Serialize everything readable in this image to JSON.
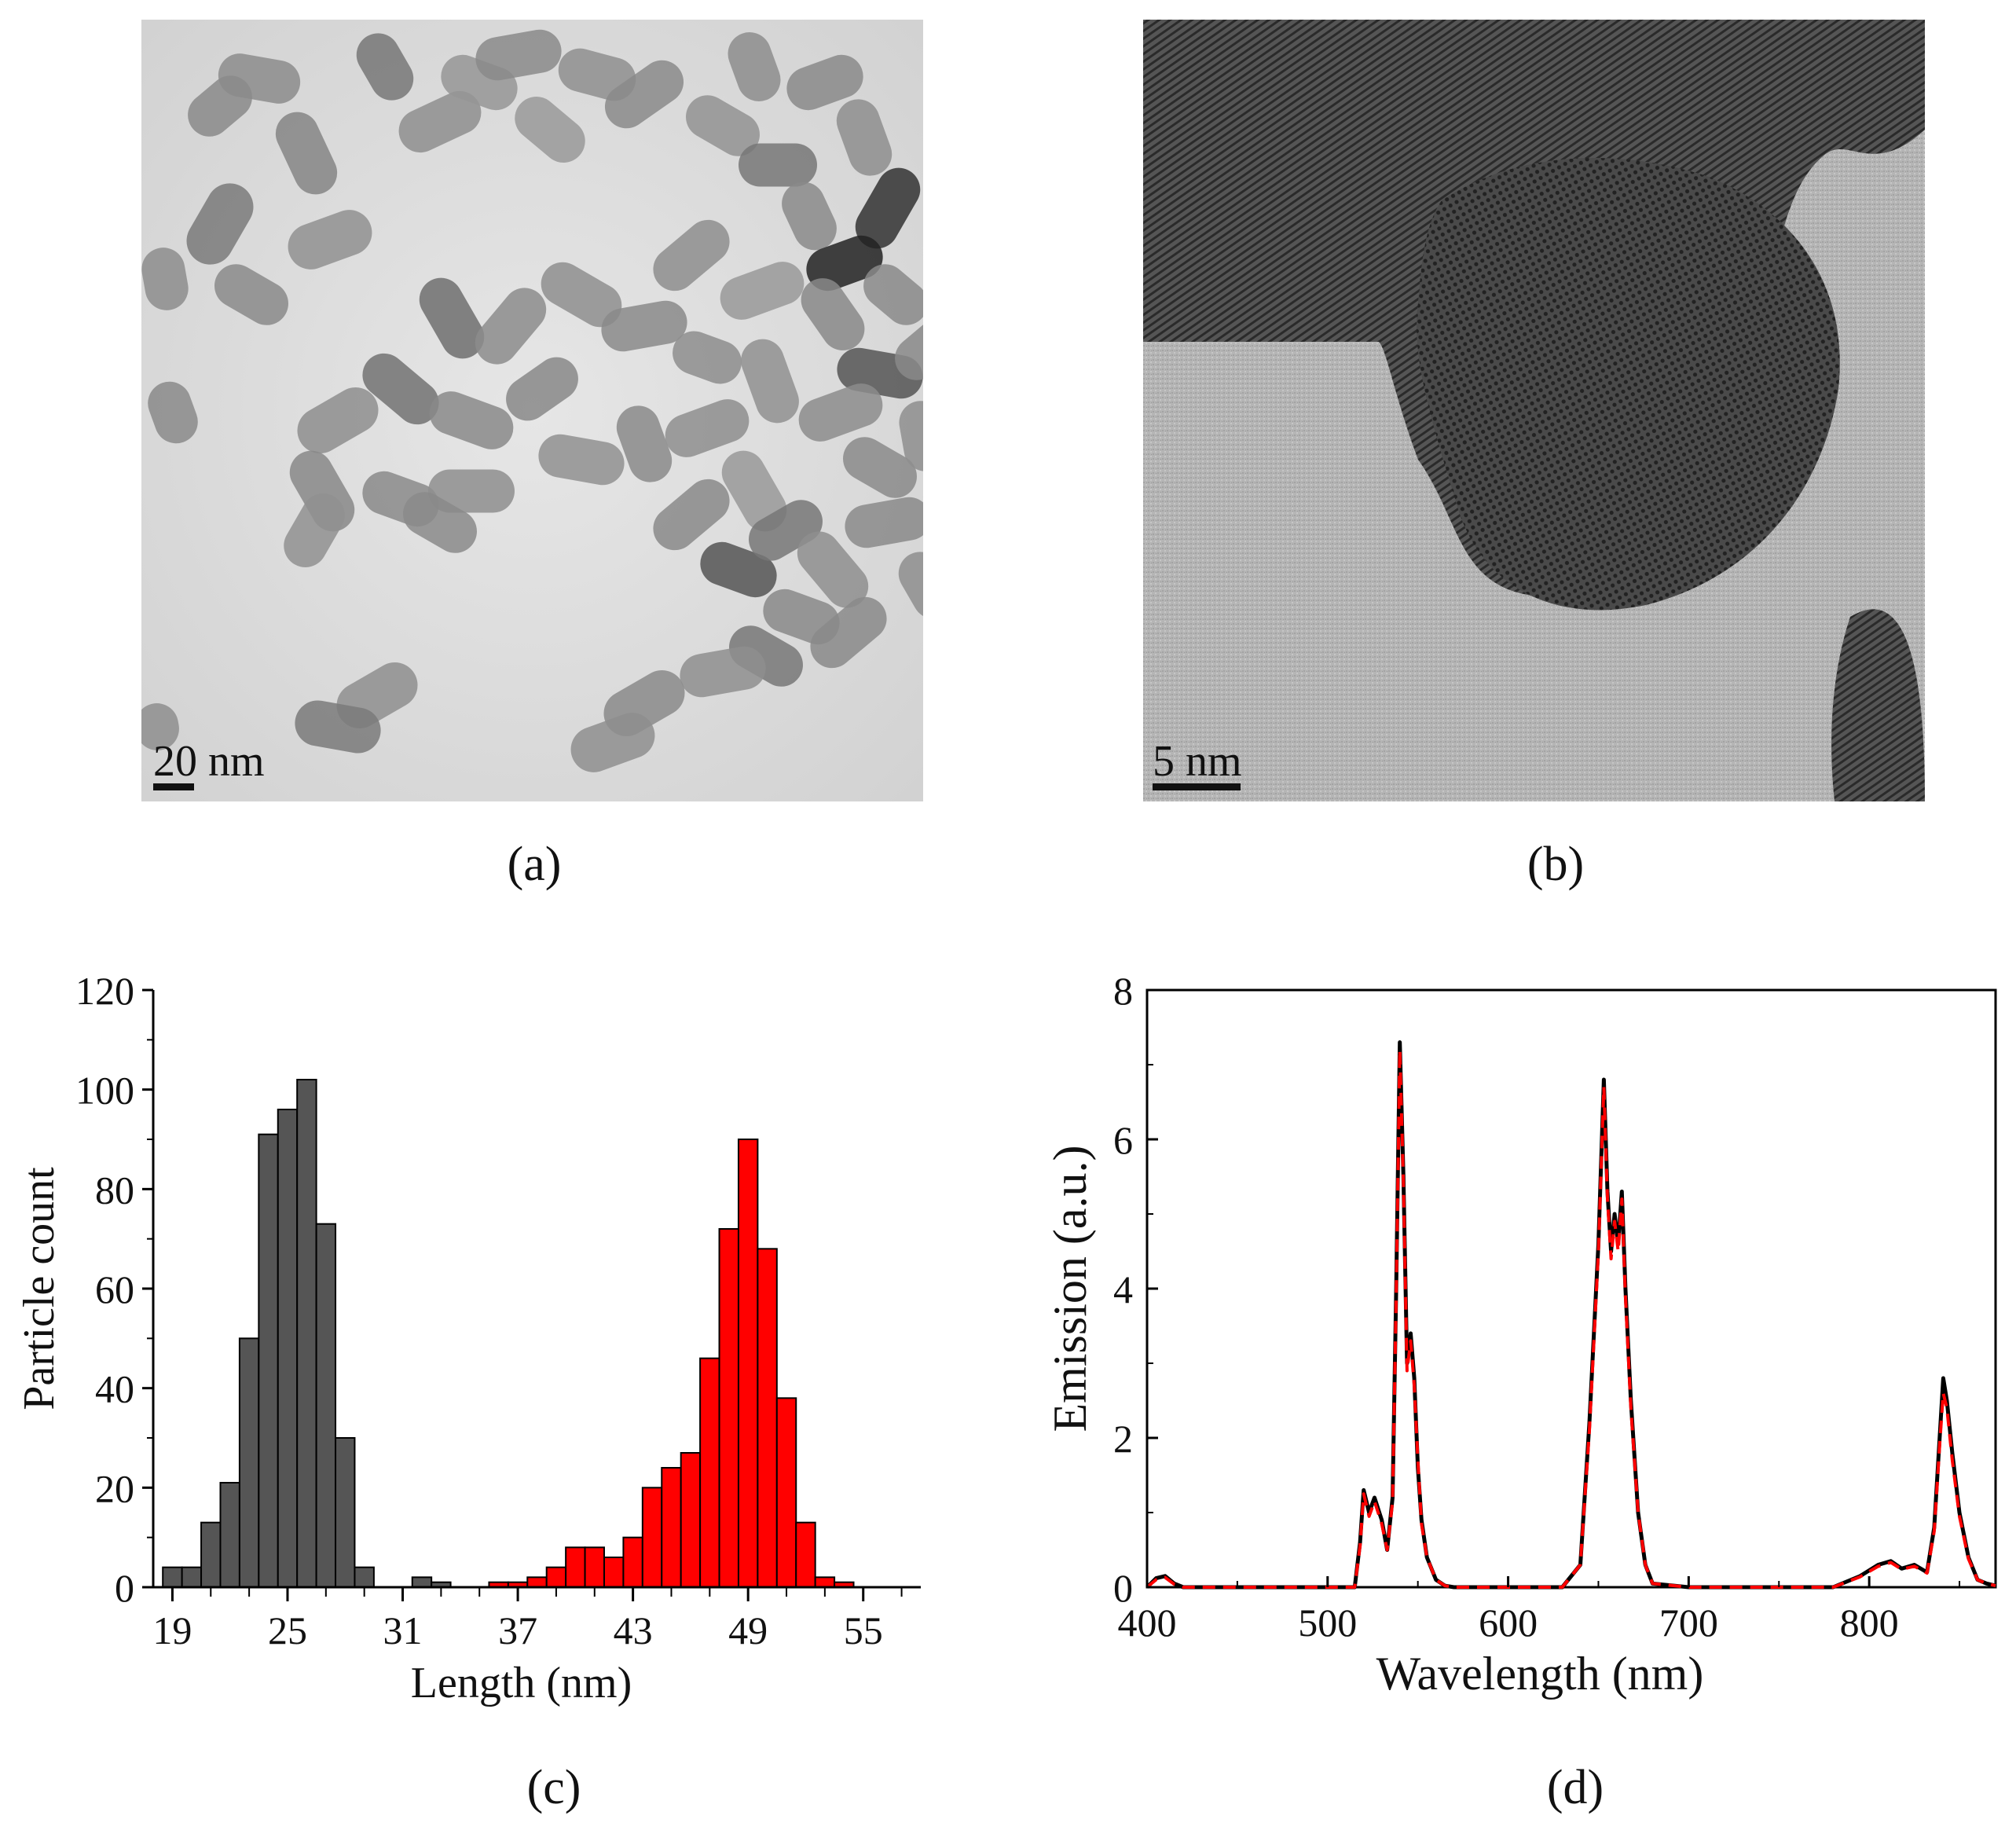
{
  "panels": {
    "a": {
      "label": "(a)",
      "scale_bar": "20 nm"
    },
    "b": {
      "label": "(b)",
      "scale_bar": "5 nm"
    },
    "c": {
      "label": "(c)"
    },
    "d": {
      "label": "(d)"
    }
  },
  "chart_data": [
    {
      "type": "bar",
      "title": "",
      "xlabel": "Length (nm)",
      "ylabel": "Particle count",
      "xlim": [
        18,
        58
      ],
      "ylim": [
        0,
        120
      ],
      "xticks": [
        19,
        25,
        31,
        37,
        43,
        49,
        55
      ],
      "yticks": [
        0,
        20,
        40,
        60,
        80,
        100,
        120
      ],
      "bin_width": 1,
      "series": [
        {
          "color": "#555555",
          "bins": [
            19,
            20,
            21,
            22,
            23,
            24,
            25,
            26,
            27,
            28,
            29,
            30,
            31,
            32,
            33,
            34
          ],
          "values": [
            4,
            4,
            13,
            21,
            50,
            91,
            96,
            102,
            73,
            30,
            4,
            0,
            0,
            2,
            1,
            0
          ]
        },
        {
          "color": "#ff0000",
          "bins": [
            35,
            36,
            37,
            38,
            39,
            40,
            41,
            42,
            43,
            44,
            45,
            46,
            47,
            48,
            49,
            50,
            51,
            52,
            53,
            54
          ],
          "values": [
            0,
            1,
            1,
            2,
            4,
            8,
            8,
            6,
            10,
            20,
            24,
            27,
            46,
            72,
            90,
            68,
            38,
            13,
            2,
            1
          ]
        }
      ]
    },
    {
      "type": "line",
      "title": "",
      "xlabel": "Wavelength (nm)",
      "ylabel": "Emission (a.u.)",
      "xlim": [
        400,
        870
      ],
      "ylim": [
        0,
        8
      ],
      "xticks": [
        400,
        500,
        600,
        700,
        800
      ],
      "yticks": [
        0,
        2,
        4,
        6,
        8
      ],
      "series": [
        {
          "color": "#000000",
          "style": "solid",
          "x": [
            400,
            405,
            410,
            415,
            420,
            500,
            515,
            518,
            520,
            523,
            526,
            530,
            533,
            536,
            538,
            540,
            542,
            544,
            546,
            548,
            550,
            552,
            555,
            560,
            565,
            570,
            600,
            630,
            640,
            645,
            650,
            653,
            655,
            657,
            659,
            661,
            663,
            665,
            668,
            672,
            676,
            680,
            700,
            780,
            795,
            805,
            812,
            818,
            825,
            832,
            836,
            839,
            841,
            843,
            846,
            850,
            855,
            860,
            865,
            870
          ],
          "y": [
            0,
            0.12,
            0.15,
            0.05,
            0,
            0,
            0,
            0.6,
            1.3,
            1.0,
            1.2,
            0.9,
            0.5,
            1.2,
            4.0,
            7.3,
            5.5,
            3.0,
            3.4,
            2.8,
            1.6,
            0.9,
            0.4,
            0.1,
            0.02,
            0,
            0,
            0,
            0.3,
            2.2,
            4.6,
            6.8,
            5.3,
            4.5,
            5.0,
            4.6,
            5.3,
            4.0,
            2.5,
            1.0,
            0.3,
            0.05,
            0,
            0,
            0.15,
            0.3,
            0.35,
            0.25,
            0.3,
            0.2,
            0.8,
            2.0,
            2.8,
            2.5,
            1.8,
            1.0,
            0.4,
            0.1,
            0.05,
            0.02
          ]
        },
        {
          "color": "#ff0000",
          "style": "dashed",
          "x": [
            400,
            405,
            410,
            415,
            420,
            500,
            515,
            518,
            520,
            523,
            526,
            530,
            533,
            536,
            538,
            540,
            542,
            544,
            546,
            548,
            550,
            552,
            555,
            560,
            565,
            570,
            600,
            630,
            640,
            645,
            650,
            653,
            655,
            657,
            659,
            661,
            663,
            665,
            668,
            672,
            676,
            680,
            700,
            780,
            795,
            805,
            812,
            818,
            825,
            832,
            836,
            839,
            841,
            843,
            846,
            850,
            855,
            860,
            865,
            870
          ],
          "y": [
            0,
            0.1,
            0.13,
            0.04,
            0,
            0,
            0,
            0.55,
            1.25,
            0.95,
            1.15,
            0.85,
            0.5,
            1.15,
            3.9,
            7.2,
            5.4,
            2.9,
            3.3,
            2.7,
            1.7,
            0.85,
            0.4,
            0.1,
            0.02,
            0,
            0,
            0,
            0.3,
            2.1,
            4.5,
            6.7,
            5.2,
            4.4,
            4.9,
            4.5,
            5.2,
            3.9,
            2.4,
            1.0,
            0.3,
            0.05,
            0,
            0,
            0.14,
            0.28,
            0.33,
            0.24,
            0.28,
            0.19,
            0.75,
            1.9,
            2.6,
            2.4,
            1.7,
            0.95,
            0.38,
            0.1,
            0.05,
            0.02
          ]
        }
      ]
    }
  ]
}
